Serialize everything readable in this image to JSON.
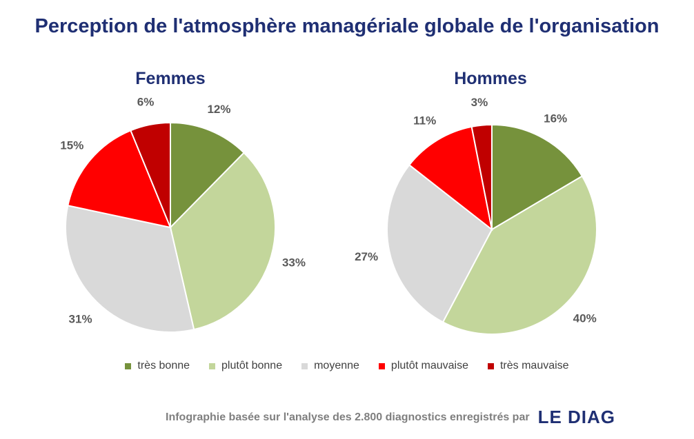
{
  "title": "Perception de l'atmosphère managériale globale de l'organisation",
  "colors": {
    "title": "#1f2f73",
    "tres_bonne": "#76923c",
    "plutot_bonne": "#c3d69b",
    "moyenne": "#d9d9d9",
    "plutot_mauvaise": "#ff0000",
    "tres_mauvaise": "#c00000"
  },
  "chart_data": [
    {
      "type": "pie",
      "title": "Femmes",
      "categories": [
        "très bonne",
        "plutôt bonne",
        "moyenne",
        "plutôt mauvaise",
        "très mauvaise"
      ],
      "values": [
        12,
        33,
        31,
        15,
        6
      ],
      "labels": [
        "12%",
        "33%",
        "31%",
        "15%",
        "6%"
      ]
    },
    {
      "type": "pie",
      "title": "Hommes",
      "categories": [
        "très bonne",
        "plutôt bonne",
        "moyenne",
        "plutôt mauvaise",
        "très mauvaise"
      ],
      "values": [
        16,
        40,
        27,
        11,
        3
      ],
      "labels": [
        "16%",
        "40%",
        "27%",
        "11%",
        "3%"
      ]
    }
  ],
  "legend": {
    "position": "bottom",
    "items": [
      "très bonne",
      "plutôt bonne",
      "moyenne",
      "plutôt mauvaise",
      "très mauvaise"
    ]
  },
  "footer": {
    "text": "Infographie basée sur l'analyse des 2.800 diagnostics enregistrés par",
    "logo": "LE DIAG"
  }
}
